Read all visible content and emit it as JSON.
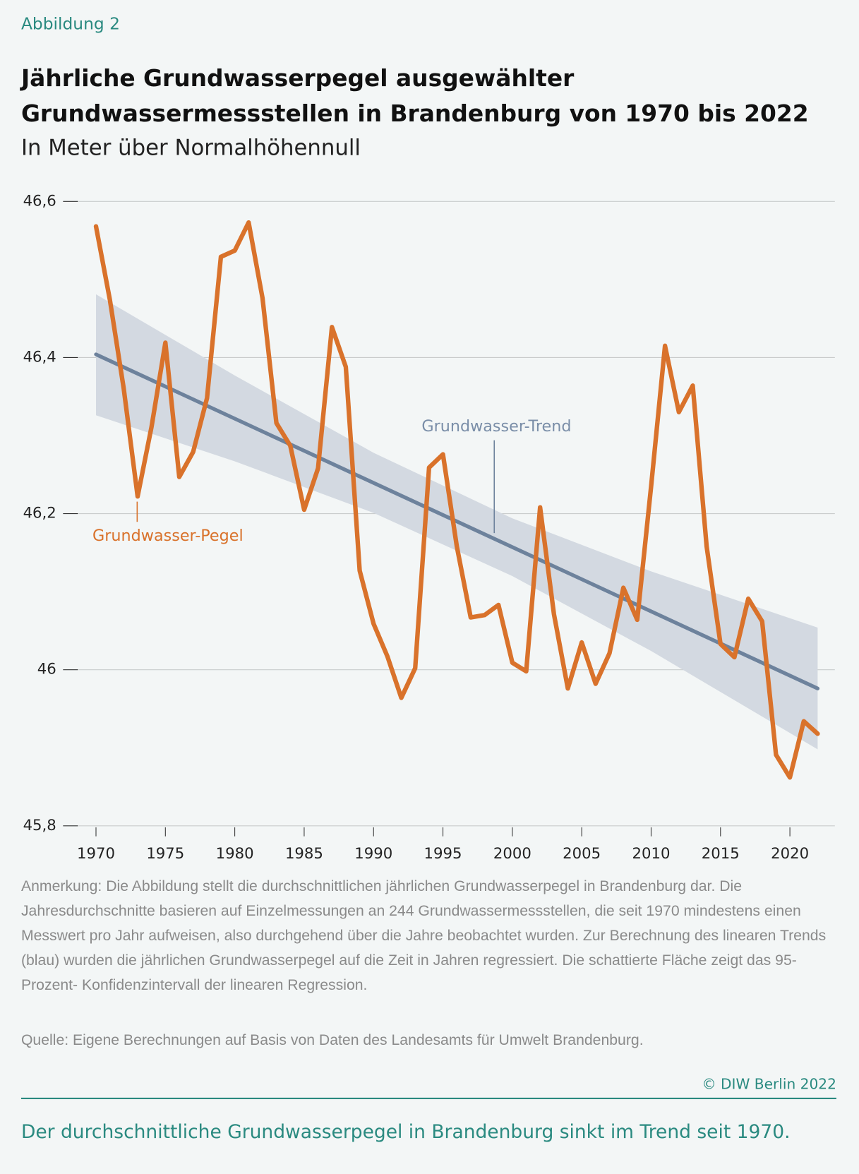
{
  "figure_label": "Abbildung 2",
  "chart_data": {
    "type": "line",
    "title": [
      "Jährliche Grundwasserpegel ausgewählter",
      "Grundwassermessstellen in Brandenburg von 1970 bis 2022"
    ],
    "subtitle": "In Meter über Normalhöhennull",
    "xlim": [
      1968.76,
      2023.24
    ],
    "ylim": [
      45.8,
      46.6
    ],
    "xticks": [
      1970,
      1975,
      1980,
      1985,
      1990,
      1995,
      2000,
      2005,
      2010,
      2015,
      2020
    ],
    "yticks": [
      {
        "value": 45.8,
        "label": "45,8"
      },
      46,
      {
        "value": 46.2,
        "label": "46,2"
      },
      {
        "value": 46.4,
        "label": "46,4"
      },
      {
        "value": 46.6,
        "label": "46,6"
      }
    ],
    "grid": true,
    "band": {
      "color": "#d3d9e1",
      "x": [
        1970,
        1980,
        1990,
        2000,
        2010,
        2022
      ],
      "lower": [
        46.326,
        46.267,
        46.201,
        46.12,
        46.024,
        45.898
      ],
      "upper": [
        46.481,
        46.377,
        46.278,
        46.194,
        46.126,
        46.054
      ]
    },
    "series": [
      {
        "name": "Grundwasser-Pegel",
        "color": "#d9722b",
        "x": [
          1970,
          1971,
          1972,
          1973,
          1974,
          1975,
          1976,
          1977,
          1978,
          1979,
          1980,
          1981,
          1982,
          1983,
          1984,
          1985,
          1986,
          1987,
          1988,
          1989,
          1990,
          1991,
          1992,
          1993,
          1994,
          1995,
          1996,
          1997,
          1998,
          1999,
          2000,
          2001,
          2002,
          2003,
          2004,
          2005,
          2006,
          2007,
          2008,
          2009,
          2010,
          2011,
          2012,
          2013,
          2014,
          2015,
          2016,
          2017,
          2018,
          2019,
          2020,
          2021,
          2022
        ],
        "values": [
          46.568,
          46.474,
          46.36,
          46.222,
          46.311,
          46.419,
          46.247,
          46.279,
          46.348,
          46.529,
          46.537,
          46.573,
          46.476,
          46.316,
          46.287,
          46.205,
          46.258,
          46.439,
          46.388,
          46.127,
          46.059,
          46.017,
          45.964,
          46.002,
          46.259,
          46.276,
          46.158,
          46.067,
          46.07,
          46.083,
          46.009,
          45.998,
          46.208,
          46.071,
          45.976,
          46.035,
          45.982,
          46.021,
          46.105,
          46.064,
          46.235,
          46.415,
          46.33,
          46.364,
          46.158,
          46.033,
          46.016,
          46.091,
          46.062,
          45.891,
          45.862,
          45.934,
          45.918
        ]
      },
      {
        "name": "Grundwasser-Trend",
        "color": "#6d829c",
        "x": [
          1970,
          2022
        ],
        "values": [
          46.404,
          45.976
        ]
      }
    ]
  },
  "note": "Anmerkung: Die Abbildung stellt die durchschnittlichen jährlichen Grundwasserpegel in Brandenburg dar. Die Jahresdurchschnitte basieren auf Einzelmessungen an 244 Grundwassermessstellen, die seit 1970 mindestens einen Messwert pro Jahr aufweisen, also durchgehend über die Jahre beobachtet wurden. Zur Berechnung des linearen Trends (blau) wurden die jährlichen Grundwasserpegel auf die Zeit in Jahren regressiert. Die schattierte Fläche zeigt das 95-Prozent- Konfidenzintervall der linearen Regression.",
  "source": "Quelle: Eigene Berechnungen auf Basis von Daten des Landesamts für Umwelt Brandenburg.",
  "copyright": "© DIW Berlin 2022",
  "caption": "Der durchschnittliche Grundwasserpegel in Brandenburg sinkt im Trend seit 1970."
}
